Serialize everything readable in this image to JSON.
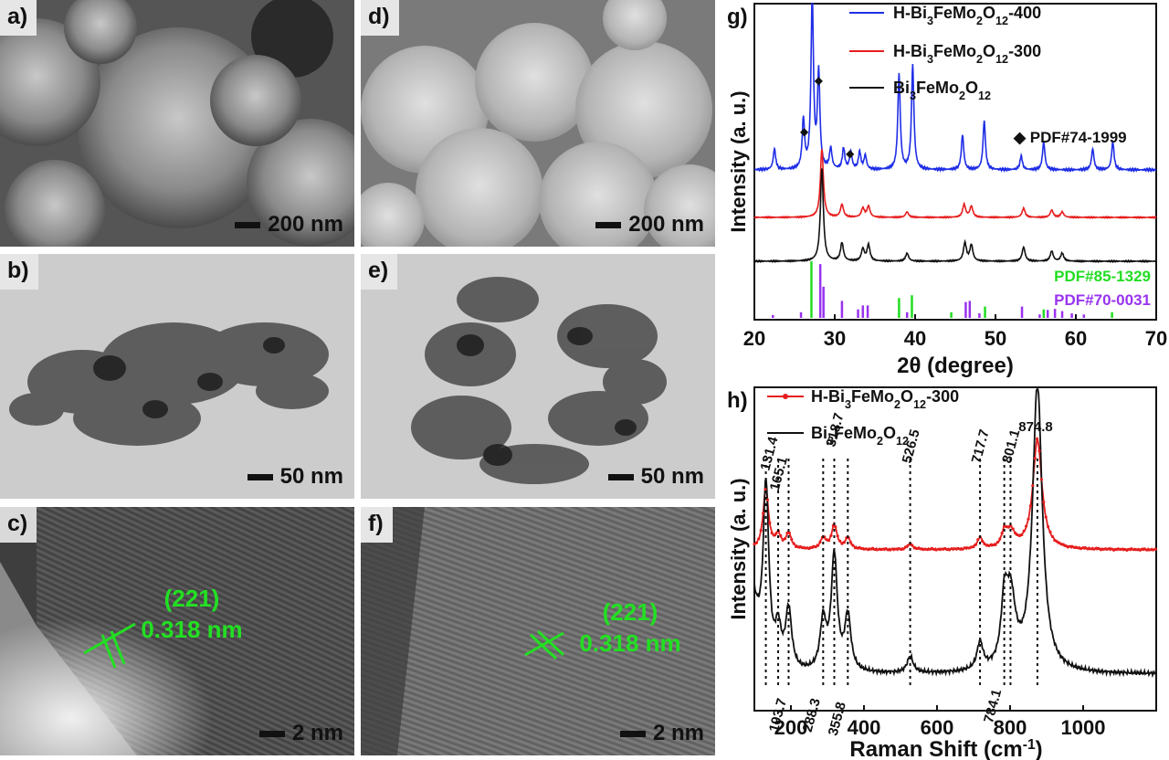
{
  "panels": {
    "a": {
      "label": "a)",
      "scale": "200 nm"
    },
    "b": {
      "label": "b)",
      "scale": "50 nm"
    },
    "c": {
      "label": "c)",
      "scale": "2 nm",
      "plane": "(221)",
      "spacing": "0.318 nm"
    },
    "d": {
      "label": "d)",
      "scale": "200 nm"
    },
    "e": {
      "label": "e)",
      "scale": "50 nm"
    },
    "f": {
      "label": "f)",
      "scale": "2 nm",
      "plane": "(221)",
      "spacing": "0.318 nm"
    }
  },
  "chart_data": [
    {
      "panel_label": "g)",
      "type": "line",
      "xlabel": "2θ (degree)",
      "ylabel": "Intensity (a. u.)",
      "xlim": [
        20,
        70
      ],
      "xticks": [
        20,
        30,
        40,
        50,
        60,
        70
      ],
      "legend_position": "top-right",
      "series": [
        {
          "name": "H-Bi3FeMo2O12-400",
          "color": "#1f2ee6",
          "peaks": [
            [
              22.5,
              0.12
            ],
            [
              26.1,
              0.28
            ],
            [
              27.2,
              1.0
            ],
            [
              28.0,
              0.55
            ],
            [
              29.5,
              0.12
            ],
            [
              31.1,
              0.12
            ],
            [
              32.0,
              0.1
            ],
            [
              33.1,
              0.1
            ],
            [
              33.8,
              0.08
            ],
            [
              38.0,
              0.55
            ],
            [
              39.7,
              0.6
            ],
            [
              45.9,
              0.2
            ],
            [
              48.6,
              0.28
            ],
            [
              53.2,
              0.08
            ],
            [
              56.0,
              0.16
            ],
            [
              62.1,
              0.12
            ],
            [
              64.6,
              0.16
            ]
          ]
        },
        {
          "name": "H-Bi3FeMo2O12-300",
          "color": "#e61e1e",
          "peaks": [
            [
              28.4,
              0.75
            ],
            [
              30.9,
              0.14
            ],
            [
              33.5,
              0.1
            ],
            [
              34.2,
              0.12
            ],
            [
              39.0,
              0.06
            ],
            [
              46.1,
              0.14
            ],
            [
              47.0,
              0.12
            ],
            [
              53.5,
              0.1
            ],
            [
              57.0,
              0.08
            ],
            [
              58.3,
              0.06
            ]
          ]
        },
        {
          "name": "Bi3FeMo2O12",
          "color": "#111111",
          "peaks": [
            [
              28.4,
              0.92
            ],
            [
              30.9,
              0.18
            ],
            [
              33.5,
              0.12
            ],
            [
              34.2,
              0.16
            ],
            [
              39.0,
              0.08
            ],
            [
              46.2,
              0.18
            ],
            [
              47.0,
              0.16
            ],
            [
              53.5,
              0.14
            ],
            [
              57.0,
              0.1
            ],
            [
              58.3,
              0.08
            ]
          ]
        }
      ],
      "reference_patterns": [
        {
          "name": "PDF#85-1329",
          "color": "#22dd22",
          "lines": [
            [
              27.1,
              1.0
            ],
            [
              38.0,
              0.35
            ],
            [
              39.6,
              0.4
            ],
            [
              44.5,
              0.1
            ],
            [
              48.7,
              0.2
            ],
            [
              56.0,
              0.15
            ],
            [
              64.5,
              0.1
            ]
          ]
        },
        {
          "name": "PDF#70-0031",
          "color": "#9933ee",
          "lines": [
            [
              22.3,
              0.05
            ],
            [
              25.8,
              0.1
            ],
            [
              28.2,
              0.95
            ],
            [
              28.6,
              0.55
            ],
            [
              30.9,
              0.3
            ],
            [
              32.9,
              0.15
            ],
            [
              33.5,
              0.22
            ],
            [
              34.1,
              0.22
            ],
            [
              39.0,
              0.1
            ],
            [
              46.3,
              0.28
            ],
            [
              46.8,
              0.3
            ],
            [
              48.0,
              0.08
            ],
            [
              53.3,
              0.2
            ],
            [
              55.5,
              0.06
            ],
            [
              56.5,
              0.14
            ],
            [
              57.4,
              0.16
            ],
            [
              58.3,
              0.12
            ],
            [
              59.5,
              0.08
            ],
            [
              61.0,
              0.06
            ]
          ]
        }
      ],
      "annotation": {
        "symbol": "◆",
        "label": "PDF#74-1999",
        "positions": [
          26.2,
          28.0,
          31.9
        ]
      }
    },
    {
      "panel_label": "h)",
      "type": "line",
      "xlabel": "Raman Shift (cm-1)",
      "ylabel": "Intensity (a. u.)",
      "xlim": [
        100,
        1200
      ],
      "xticks": [
        200,
        400,
        600,
        800,
        1000
      ],
      "legend_position": "top-left",
      "series": [
        {
          "name": "H-Bi3FeMo2O12-300",
          "color": "#e61e1e",
          "peaks": [
            [
              131.4,
              0.55
            ],
            [
              165.1,
              0.12
            ],
            [
              193.7,
              0.14
            ],
            [
              288.3,
              0.1
            ],
            [
              318.7,
              0.22
            ],
            [
              355.8,
              0.1
            ],
            [
              526.5,
              0.05
            ],
            [
              717.7,
              0.1
            ],
            [
              784.1,
              0.12
            ],
            [
              801.1,
              0.15
            ],
            [
              874.8,
              1.0
            ]
          ]
        },
        {
          "name": "Bi3FeMo2O12",
          "color": "#111111",
          "peaks": [
            [
              131.4,
              0.7
            ],
            [
              165.1,
              0.14
            ],
            [
              193.7,
              0.22
            ],
            [
              288.3,
              0.18
            ],
            [
              318.7,
              0.42
            ],
            [
              355.8,
              0.2
            ],
            [
              526.5,
              0.06
            ],
            [
              717.7,
              0.1
            ],
            [
              784.1,
              0.2
            ],
            [
              801.1,
              0.26
            ],
            [
              874.8,
              1.05
            ]
          ]
        }
      ],
      "peak_labels": [
        "131.4",
        "165.1",
        "193.7",
        "288.3",
        "318.7",
        "355.8",
        "526.5",
        "717.7",
        "784.1",
        "801.1",
        "874.8"
      ]
    }
  ]
}
